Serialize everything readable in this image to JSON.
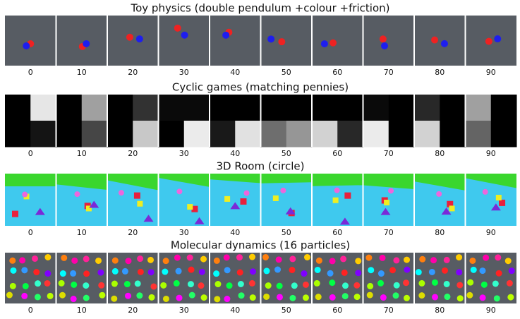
{
  "panels": [
    {
      "title": "Toy physics (double pendulum +colour +friction)",
      "frames": [
        0,
        10,
        20,
        30,
        40,
        50,
        60,
        70,
        80,
        90
      ]
    },
    {
      "title": "Cyclic games (matching pennies)",
      "frames": [
        0,
        10,
        20,
        30,
        40,
        50,
        60,
        70,
        80,
        90
      ]
    },
    {
      "title": "3D Room (circle)",
      "frames": [
        0,
        10,
        20,
        30,
        40,
        50,
        60,
        70,
        80,
        90
      ]
    },
    {
      "title": "Molecular dynamics (16 particles)",
      "frames": [
        0,
        10,
        20,
        30,
        40,
        50,
        60,
        70,
        80,
        90
      ]
    }
  ]
}
